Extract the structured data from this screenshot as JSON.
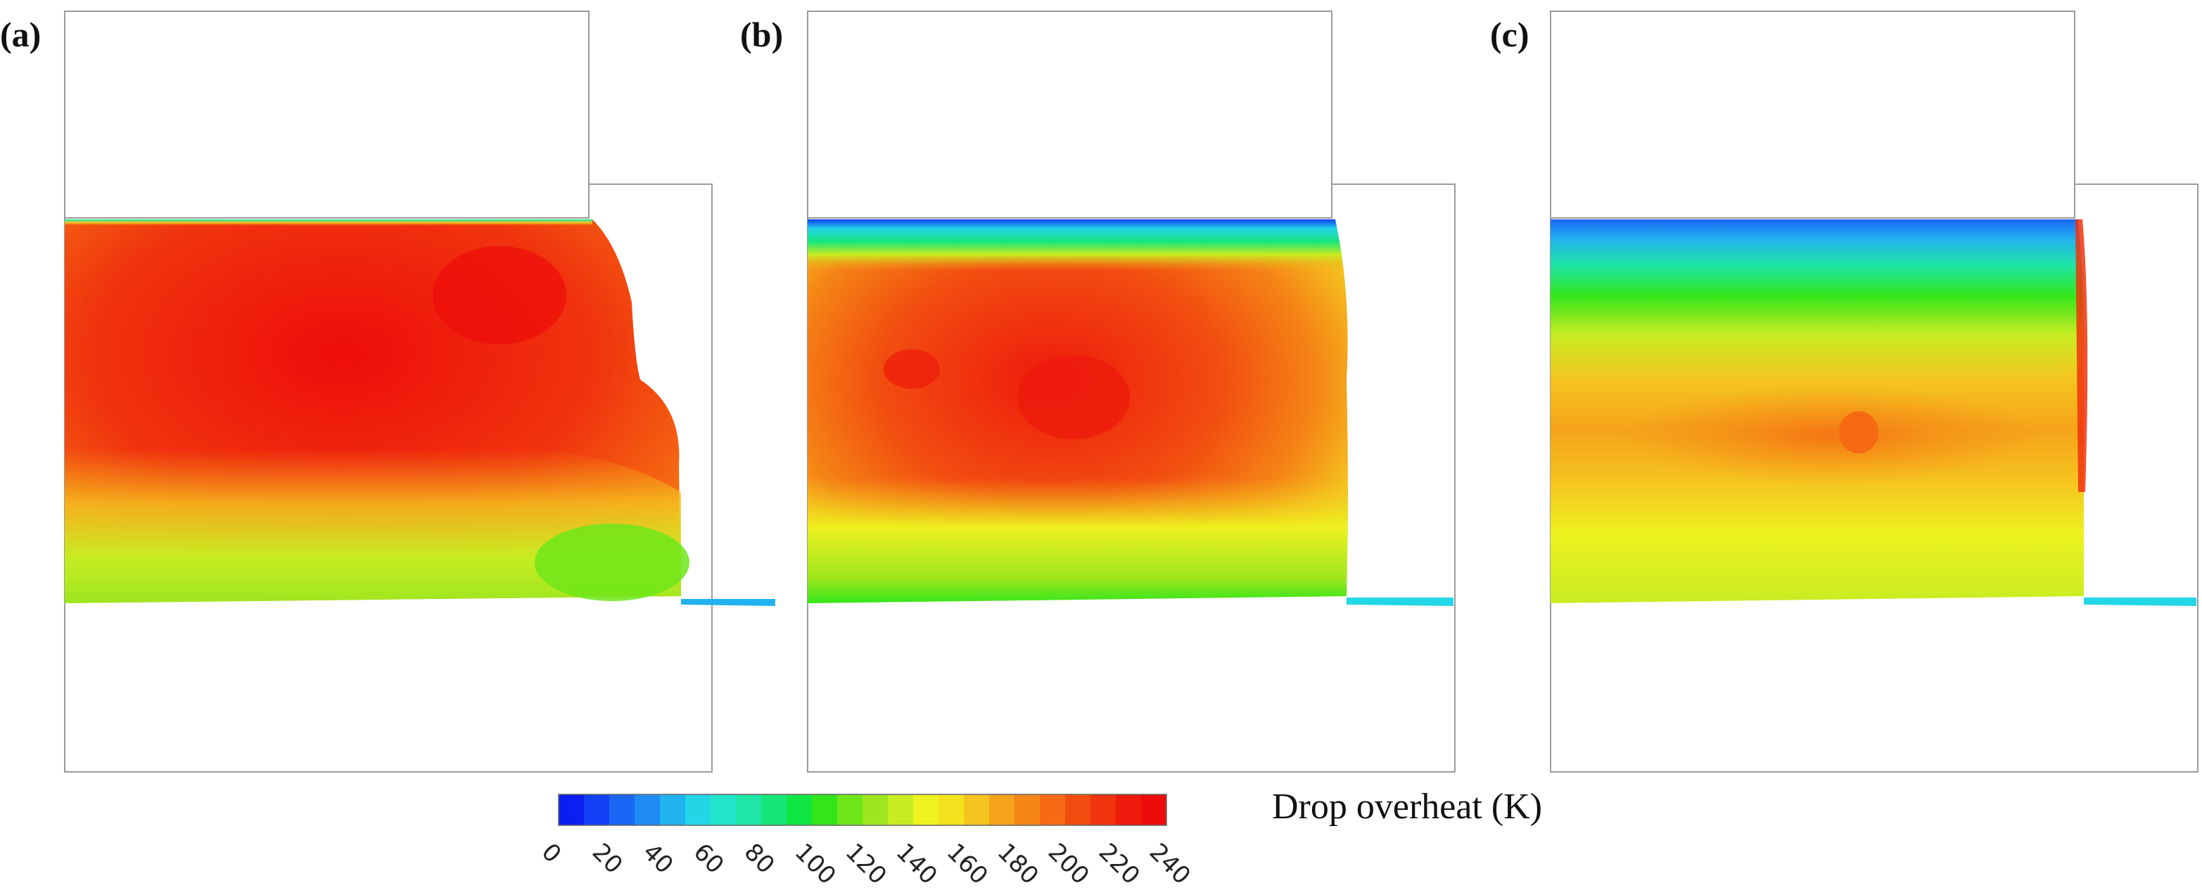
{
  "panels": [
    {
      "label": "(a)",
      "peak_overheat_K": 240,
      "top_overheat_K": 80
    },
    {
      "label": "(b)",
      "peak_overheat_K": 225,
      "top_overheat_K": 20
    },
    {
      "label": "(c)",
      "peak_overheat_K": 195,
      "top_overheat_K": 10
    }
  ],
  "colorbar": {
    "title": "Drop overheat (K)",
    "min": 0,
    "max": 240,
    "step": 10,
    "tick_labels": [
      "0",
      "20",
      "40",
      "60",
      "80",
      "100",
      "120",
      "140",
      "160",
      "180",
      "200",
      "220",
      "240"
    ],
    "colors": [
      "#0a1ff0",
      "#1140f5",
      "#1a66f5",
      "#1f8cf5",
      "#22b2f0",
      "#22d6e6",
      "#22e6cc",
      "#1fe6a6",
      "#16e67a",
      "#10e644",
      "#33e61a",
      "#6fe61a",
      "#9ee61f",
      "#c8ec22",
      "#eef21f",
      "#f5e21f",
      "#f5c41f",
      "#f5a31a",
      "#f58516",
      "#f56a12",
      "#f24d10",
      "#f0340e",
      "#ee1a0c",
      "#ee0c0a"
    ]
  }
}
